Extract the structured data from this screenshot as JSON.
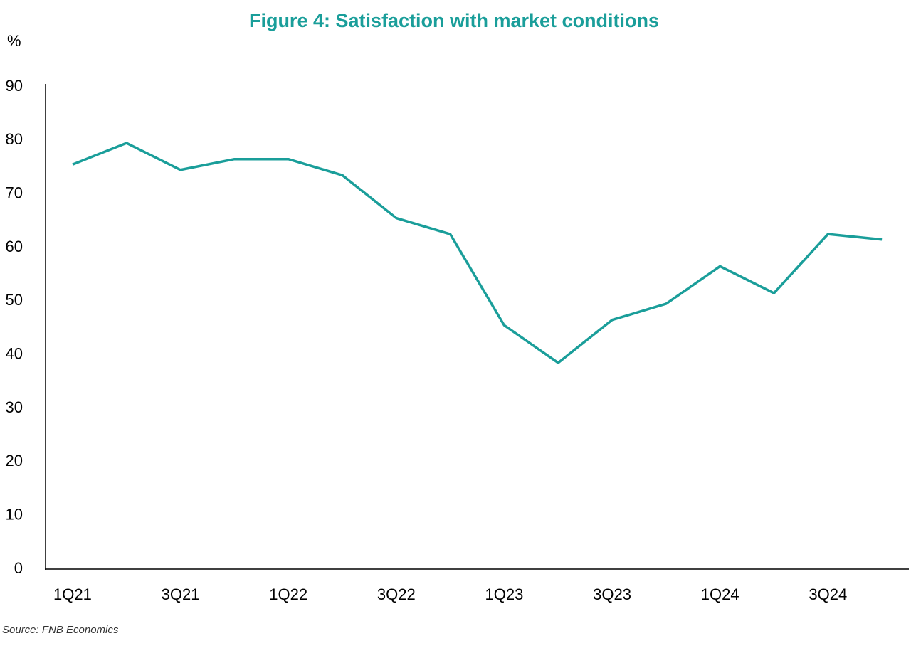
{
  "chart_data": {
    "type": "line",
    "title": "Figure 4: Satisfaction with market conditions",
    "y_label": "%",
    "source": "Source: FNB Economics",
    "categories": [
      "1Q21",
      null,
      "3Q21",
      null,
      "1Q22",
      null,
      "3Q22",
      null,
      "1Q23",
      null,
      "3Q23",
      null,
      "1Q24",
      null,
      "3Q24",
      null
    ],
    "series": [
      {
        "name": "Satisfaction",
        "color": "#1a9e9a",
        "values": [
          75.5,
          79.5,
          74.5,
          76.5,
          76.5,
          73.5,
          65.5,
          62.5,
          45.5,
          38.5,
          46.5,
          49.5,
          56.5,
          51.5,
          62.5,
          61.5
        ]
      }
    ],
    "ylim": [
      0,
      90
    ],
    "yticks": [
      0,
      10,
      20,
      30,
      40,
      50,
      60,
      70,
      80,
      90
    ],
    "grid": false
  }
}
